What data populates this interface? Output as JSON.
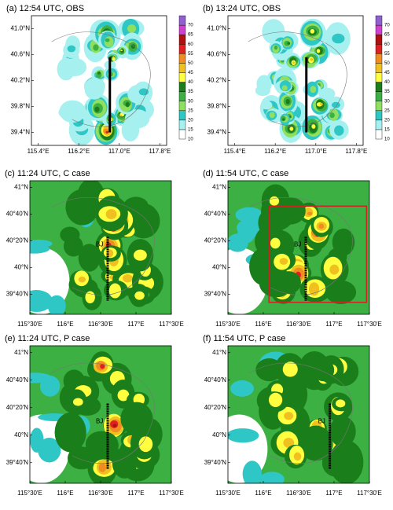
{
  "panels": [
    {
      "title": "(a) 12:54 UTC, OBS",
      "kind": "obs"
    },
    {
      "title": "(b) 13:24 UTC, OBS",
      "kind": "obs"
    },
    {
      "title": "(c) 11:24 UTC, C case",
      "kind": "model"
    },
    {
      "title": "(d) 11:54 UTC, C case",
      "kind": "model",
      "box": true
    },
    {
      "title": "(e) 11:24 UTC, P case",
      "kind": "model"
    },
    {
      "title": "(f) 11:54 UTC, P case",
      "kind": "model"
    }
  ],
  "obs_axes": {
    "xlabels": [
      "115.4°E",
      "116.2°E",
      "117.0°E",
      "117.8°E"
    ],
    "ylabels": [
      "41.0°N",
      "40.6°N",
      "40.2°N",
      "39.8°N",
      "39.4°N"
    ]
  },
  "model_axes": {
    "xlabels": [
      "115°30'E",
      "116°E",
      "116°30'E",
      "117°E",
      "117°30'E"
    ],
    "ylabels": [
      "41°N",
      "40°40'N",
      "40°20'N",
      "40°N",
      "39°40'N"
    ]
  },
  "bj_label": "BJ",
  "colorbar": {
    "labels": [
      "10",
      "15",
      "20",
      "25",
      "30",
      "35",
      "40",
      "45",
      "50",
      "55",
      "60",
      "65",
      "70"
    ],
    "colors": [
      "#ffffff",
      "#a6f0f0",
      "#2fc6c6",
      "#90e060",
      "#3cb043",
      "#1a7f1a",
      "#ffff40",
      "#f0c020",
      "#f08c20",
      "#e02020",
      "#b01010",
      "#d040d0",
      "#9060d0"
    ]
  }
}
